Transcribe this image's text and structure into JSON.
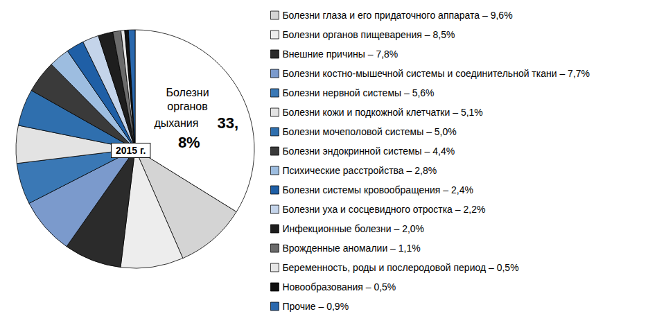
{
  "chart_data": {
    "type": "pie",
    "categories": [
      "Болезни органов дыхания",
      "Болезни глаза и его придаточного аппарата – 9,6%",
      "Болезни органов пищеварения – 8,5%",
      "Внешние причины – 7,8%",
      "Болезни костно-мышечной системы и соединительной ткани – 7,7%",
      "Болезни нервной системы – 5,6%",
      "Болезни кожи и подкожной клетчатки – 5,1%",
      "Болезни мочеполовой системы – 5,0%",
      "Болезни эндокринной системы – 4,4%",
      "Психические расстройства – 2,8%",
      "Болезни системы кровообращения – 2,4%",
      "Болезни уха и сосцевидного отростка – 2,2%",
      "Инфекционные болезни – 2,0%",
      "Врожденные аномалии – 1,1%",
      "Беременность, роды и послеродовой период – 0,5%",
      "Новообразования – 0,5%",
      "Прочие – 0,9%"
    ],
    "values": [
      33.8,
      9.6,
      8.5,
      7.8,
      7.7,
      5.6,
      5.1,
      5.0,
      4.4,
      2.8,
      2.4,
      2.2,
      2.0,
      1.1,
      0.5,
      0.5,
      0.9
    ],
    "value_labels": [
      "33,8%",
      null,
      null,
      null,
      null,
      null,
      null,
      null,
      null,
      null,
      null,
      null,
      null,
      null,
      null,
      null,
      null
    ],
    "colors": [
      "#ffffff",
      "#d4d4d4",
      "#ededed",
      "#2b2b2b",
      "#7b9acc",
      "#3a78b5",
      "#e3e3e3",
      "#2f6fae",
      "#3a3a3a",
      "#9dbde0",
      "#1f5fa6",
      "#c4d4ea",
      "#1e1e1e",
      "#6b6b6b",
      "#e6e6e6",
      "#111111",
      "#2a68ad"
    ],
    "annotations": [
      "2015 г."
    ],
    "legend": "right",
    "data_labels": true
  }
}
